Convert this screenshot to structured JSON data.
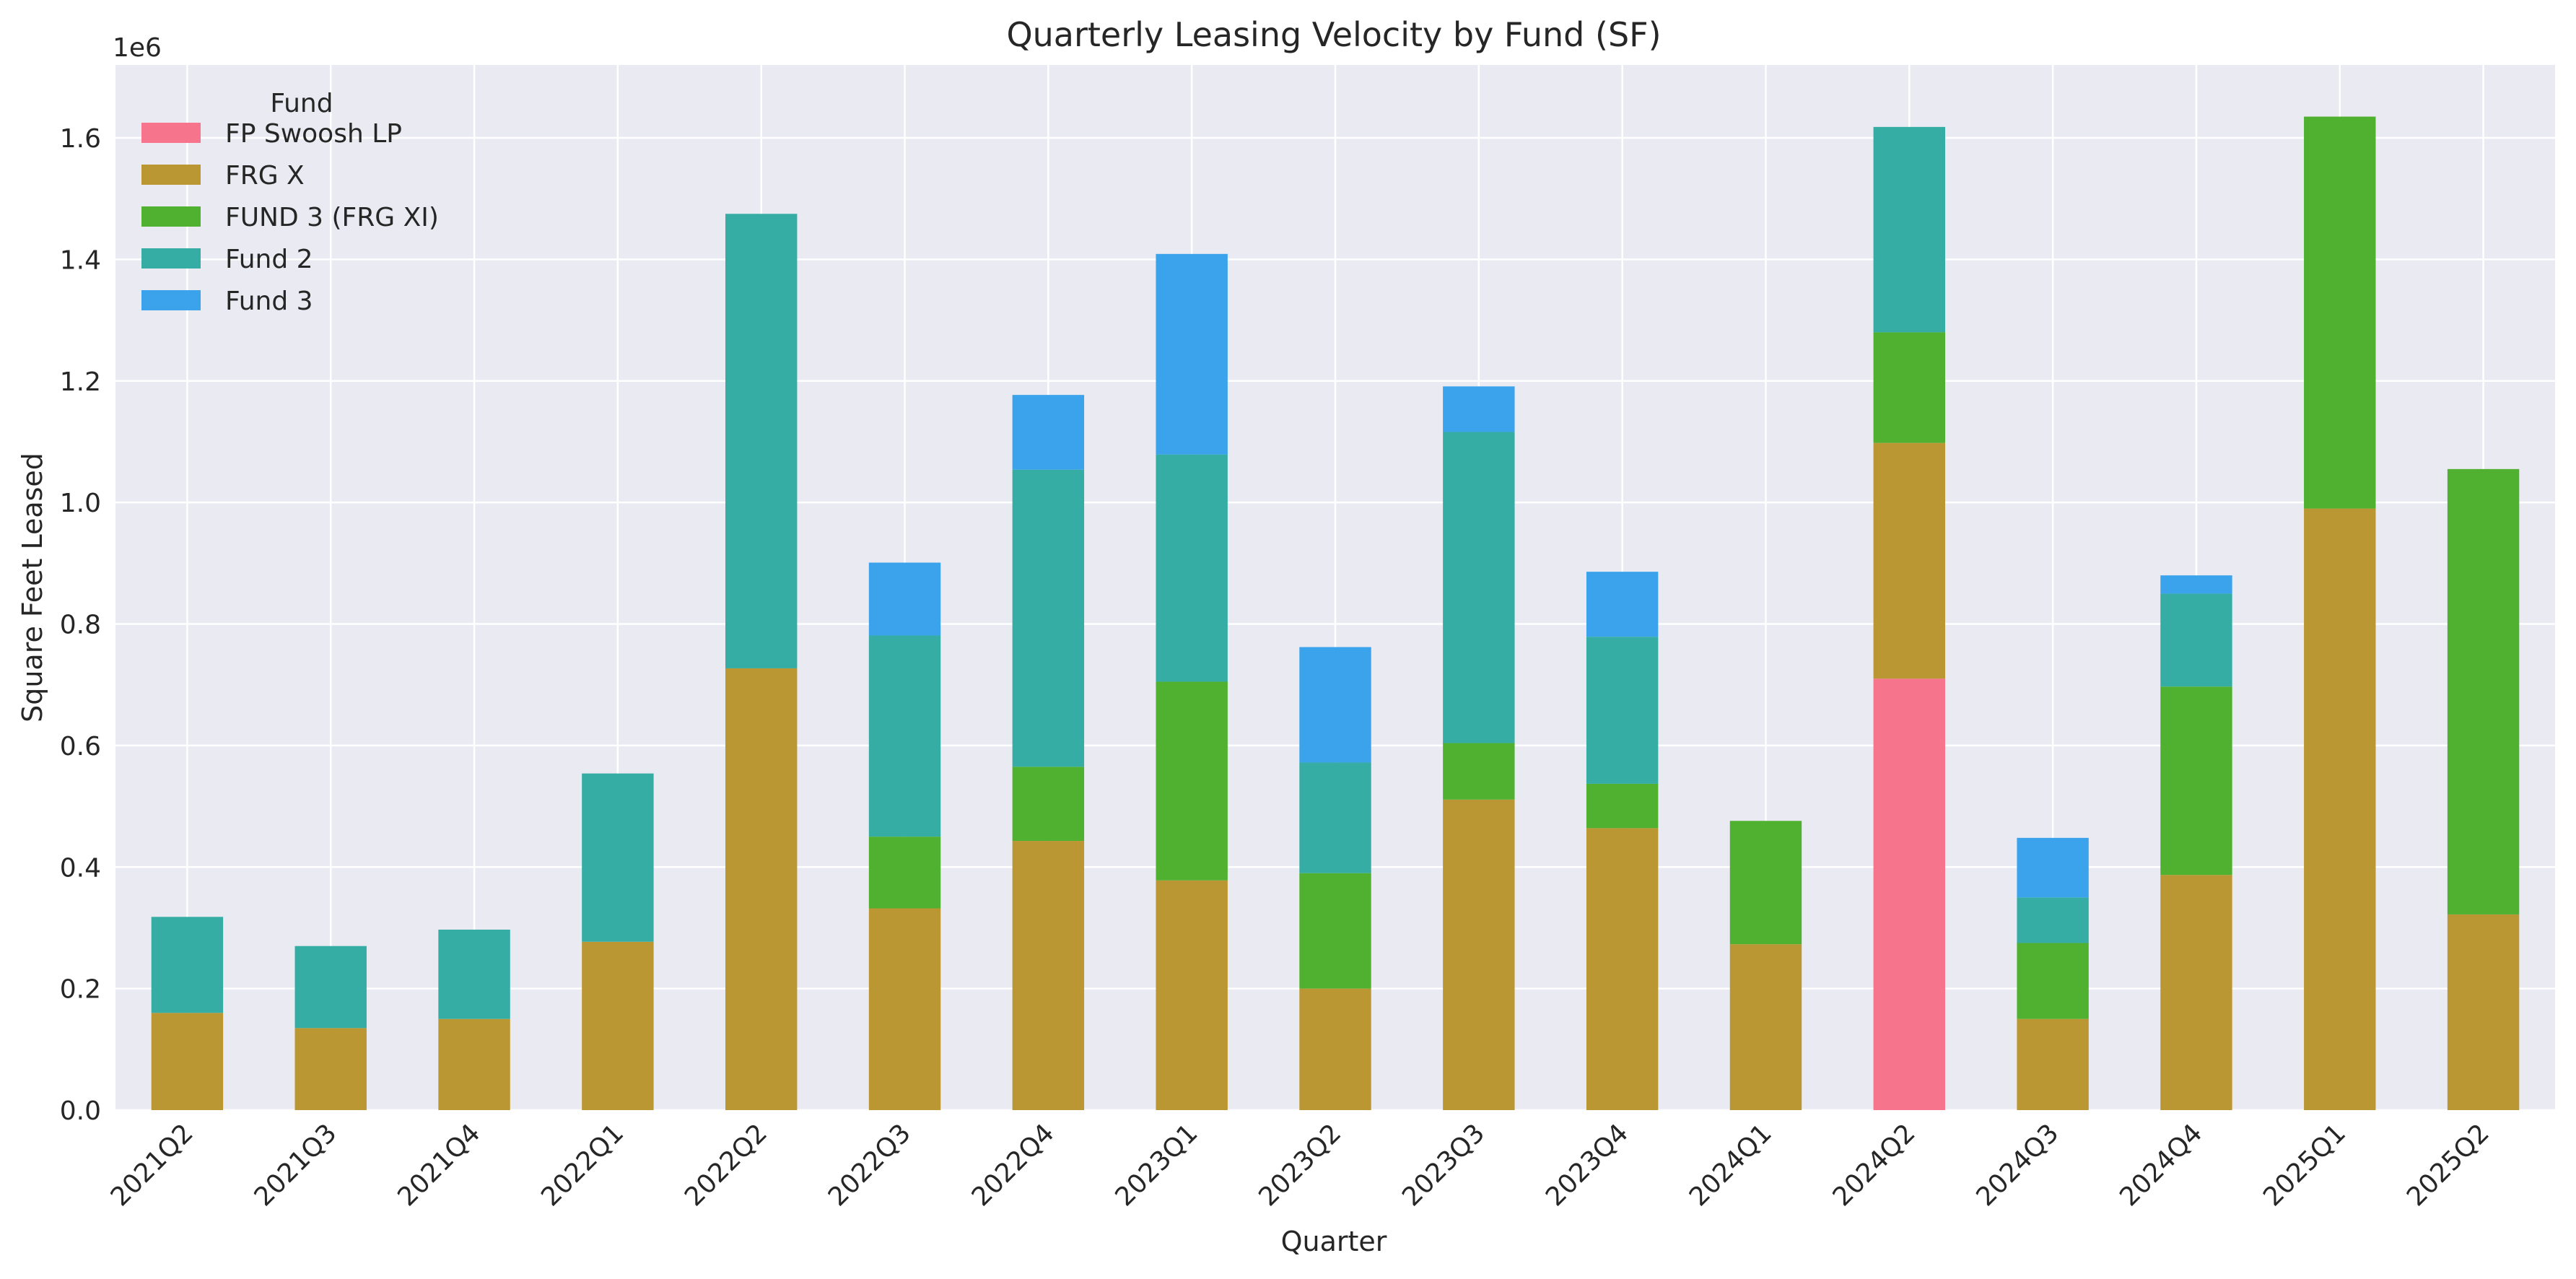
{
  "chart_data": {
    "type": "bar",
    "stacked": true,
    "title": "Quarterly Leasing Velocity by Fund (SF)",
    "xlabel": "Quarter",
    "ylabel": "Square Feet Leased",
    "y_offset_label": "1e6",
    "ylim": [
      0,
      1.72
    ],
    "y_ticks": [
      "0.0",
      "0.2",
      "0.4",
      "0.6",
      "0.8",
      "1.0",
      "1.2",
      "1.4",
      "1.6"
    ],
    "y_unit_note": "values in millions of square feet (axis multiplier 1e6)",
    "grid": true,
    "legend": {
      "title": "Fund",
      "placement": "top-left"
    },
    "categories": [
      "2021Q2",
      "2021Q3",
      "2021Q4",
      "2022Q1",
      "2022Q2",
      "2022Q3",
      "2022Q4",
      "2023Q1",
      "2023Q2",
      "2023Q3",
      "2023Q4",
      "2024Q1",
      "2024Q2",
      "2024Q3",
      "2024Q4",
      "2025Q1",
      "2025Q2"
    ],
    "series": [
      {
        "name": "FP Swoosh LP",
        "color": "#f7758c",
        "values": [
          0,
          0,
          0,
          0,
          0,
          0,
          0,
          0,
          0,
          0,
          0,
          0,
          0.71,
          0,
          0,
          0,
          0
        ]
      },
      {
        "name": "FRG X",
        "color": "#ba9733",
        "values": [
          0.16,
          0.135,
          0.15,
          0.277,
          0.727,
          0.332,
          0.443,
          0.378,
          0.2,
          0.511,
          0.464,
          0.273,
          0.388,
          0.15,
          0.387,
          0.99,
          0.322
        ]
      },
      {
        "name": "FUND 3 (FRG XI)",
        "color": "#50b131",
        "values": [
          0,
          0,
          0,
          0,
          0,
          0.118,
          0.122,
          0.327,
          0.19,
          0.093,
          0.073,
          0.203,
          0.182,
          0.125,
          0.31,
          0.645,
          0.733
        ]
      },
      {
        "name": "Fund 2",
        "color": "#36ada4",
        "values": [
          0.158,
          0.135,
          0.147,
          0.277,
          0.748,
          0.331,
          0.489,
          0.374,
          0.182,
          0.512,
          0.242,
          0,
          0.338,
          0.075,
          0.153,
          0,
          0
        ]
      },
      {
        "name": "Fund 3",
        "color": "#3ba3ec",
        "values": [
          0,
          0,
          0,
          0,
          0,
          0.12,
          0.123,
          0.33,
          0.19,
          0.075,
          0.107,
          0,
          0,
          0.098,
          0.03,
          0,
          0
        ]
      }
    ]
  }
}
